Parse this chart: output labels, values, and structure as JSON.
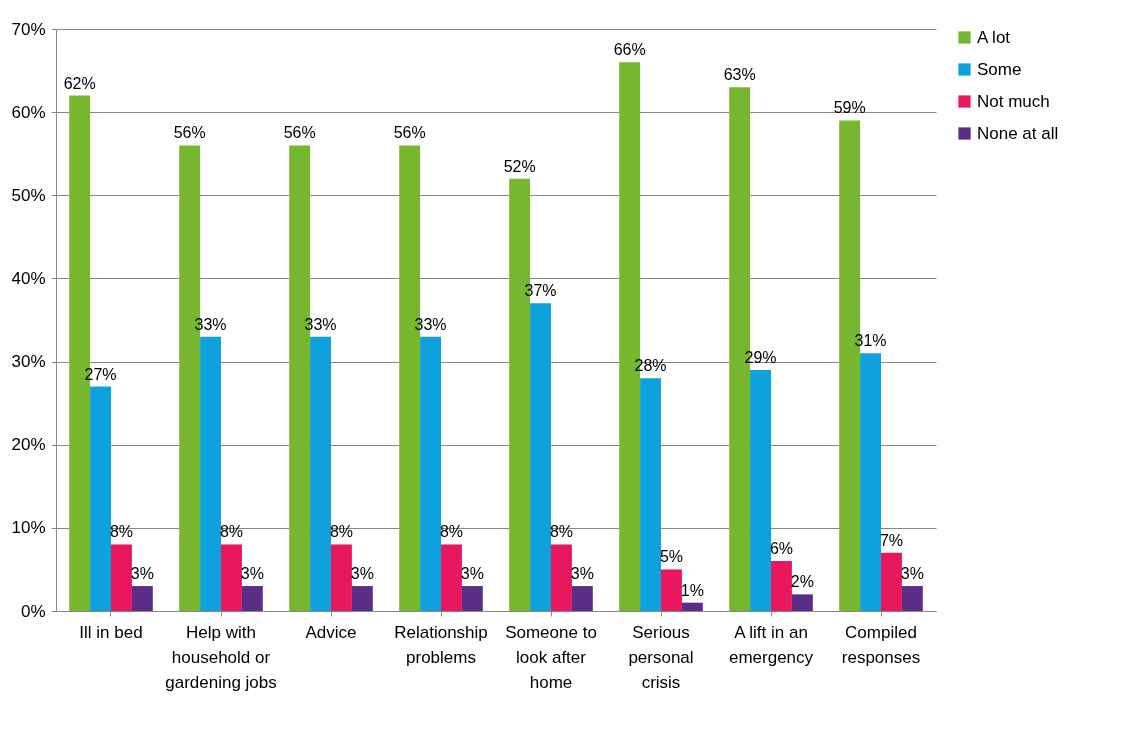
{
  "chart_data": {
    "type": "bar",
    "categories": [
      "Ill in  bed",
      "Help with household or gardening jobs",
      "Advice",
      "Relationship problems",
      "Someone to look after home",
      "Serious personal crisis",
      "A lift in an emergency",
      "Compiled responses"
    ],
    "series": [
      {
        "name": "A lot",
        "color": "#77b62f",
        "values": [
          62,
          56,
          56,
          56,
          52,
          66,
          63,
          59
        ],
        "value_labels": [
          "62%",
          "56%",
          "56%",
          "56%",
          "52%",
          "66%",
          "63%",
          "59%"
        ]
      },
      {
        "name": "Some",
        "color": "#0ea1dd",
        "values": [
          27,
          33,
          33,
          33,
          37,
          28,
          29,
          31
        ],
        "value_labels": [
          "27%",
          "33%",
          "33%",
          "33%",
          "37%",
          "28%",
          "29%",
          "31%"
        ]
      },
      {
        "name": "Not much",
        "color": "#e8175d",
        "values": [
          8,
          8,
          8,
          8,
          8,
          5,
          6,
          7
        ],
        "value_labels": [
          "8%",
          "8%",
          "8%",
          "8%",
          "8%",
          "5%",
          "6%",
          "7%"
        ]
      },
      {
        "name": "None at all",
        "color": "#5c2d87",
        "values": [
          3,
          3,
          3,
          3,
          3,
          1,
          2,
          3
        ],
        "value_labels": [
          "3%",
          "3%",
          "3%",
          "3%",
          "3%",
          "1%",
          "2%",
          "3%"
        ]
      }
    ],
    "ylim": [
      0,
      70
    ],
    "yticks": [
      {
        "value": 0,
        "label": "0%"
      },
      {
        "value": 10,
        "label": "10%"
      },
      {
        "value": 20,
        "label": "20%"
      },
      {
        "value": 30,
        "label": "30%"
      },
      {
        "value": 40,
        "label": "40%"
      },
      {
        "value": 50,
        "label": "50%"
      },
      {
        "value": 60,
        "label": "60%"
      },
      {
        "value": 70,
        "label": "70%"
      }
    ],
    "grid": "y",
    "legend": "right"
  }
}
